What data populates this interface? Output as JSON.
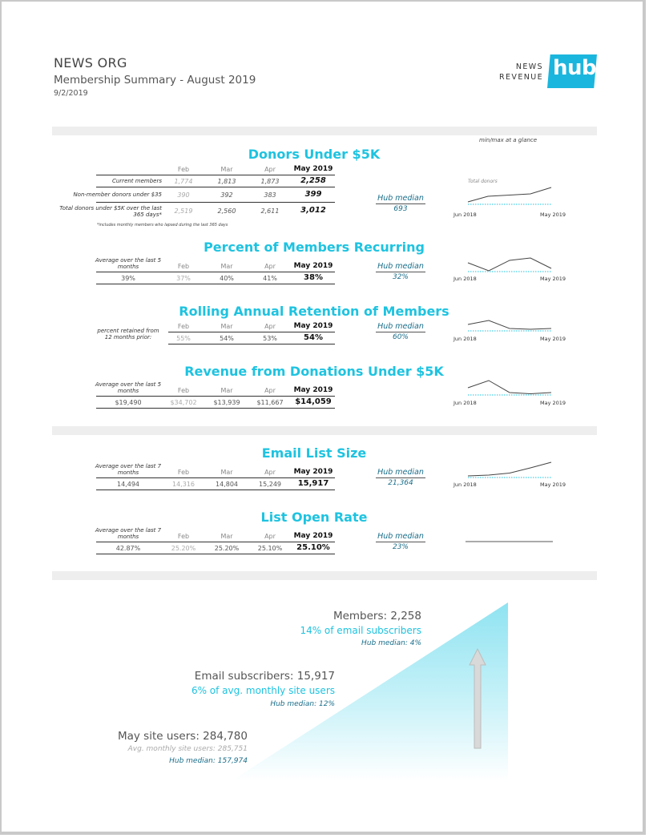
{
  "header": {
    "org_name": "NEWS ORG",
    "report_title": "Membership Summary - August 2019",
    "date": "9/2/2019",
    "logo": {
      "line1": "NEWS",
      "line2": "REVENUE",
      "hub": "hub",
      "color": "#1bb6dd"
    }
  },
  "glance_label": "min/max at a glance",
  "accent_color": "#1ec3e0",
  "months": [
    "Feb",
    "Mar",
    "Apr",
    "May 2019"
  ],
  "donors": {
    "title": "Donors Under $5K",
    "rows": [
      {
        "label": "Current members",
        "values": [
          "1,774",
          "1,813",
          "1,873"
        ],
        "current": "2,258"
      },
      {
        "label": "Non-member donors under $35",
        "values": [
          "390",
          "392",
          "383"
        ],
        "current": "399"
      },
      {
        "label": "Total donors under $5K over the last 365 days*",
        "values": [
          "2,519",
          "2,560",
          "2,611"
        ],
        "current": "3,012"
      }
    ],
    "footnote": "*includes monthly members who lapsed during the last 365 days",
    "hub_label": "Hub median",
    "hub_value": "693",
    "spark_caption": "Total donors",
    "spark_start": "Jun 2018",
    "spark_end": "May 2019"
  },
  "recurring": {
    "title": "Percent of Members Recurring",
    "avg_label": "Average over the last 5 months",
    "avg_value": "39%",
    "values": [
      "37%",
      "40%",
      "41%"
    ],
    "current": "38%",
    "hub_label": "Hub median",
    "hub_value": "32%",
    "spark_start": "Jun 2018",
    "spark_end": "May 2019"
  },
  "retention": {
    "title": "Rolling Annual Retention of Members",
    "avg_label": "percent retained from 12 months prior:",
    "values": [
      "55%",
      "54%",
      "53%"
    ],
    "current": "54%",
    "hub_label": "Hub median",
    "hub_value": "60%",
    "spark_start": "Jun 2018",
    "spark_end": "May 2019"
  },
  "revenue": {
    "title": "Revenue from Donations Under $5K",
    "avg_label": "Average over the last 5 months",
    "avg_value": "$19,490",
    "values": [
      "$34,702",
      "$13,939",
      "$11,667"
    ],
    "current": "$14,059",
    "spark_start": "Jun 2018",
    "spark_end": "May 2019"
  },
  "email": {
    "title": "Email List Size",
    "avg_label": "Average over the last 7 months",
    "avg_value": "14,494",
    "values": [
      "14,316",
      "14,804",
      "15,249"
    ],
    "current": "15,917",
    "hub_label": "Hub median",
    "hub_value": "21,364",
    "spark_start": "Jun 2018",
    "spark_end": "May 2019"
  },
  "open_rate": {
    "title": "List Open Rate",
    "avg_label": "Average over the last 7 months",
    "avg_value": "42.87%",
    "values": [
      "25.20%",
      "25.20%",
      "25.10%"
    ],
    "current": "25.10%",
    "hub_label": "Hub median",
    "hub_value": "23%"
  },
  "funnel": {
    "members": {
      "main": "Members: 2,258",
      "pct": "14% of email subscribers",
      "hub": "Hub median: 4%"
    },
    "email": {
      "main": "Email subscribers: 15,917",
      "pct": "6% of avg. monthly site users",
      "hub": "Hub median: 12%"
    },
    "site": {
      "main": "May site users: 284,780",
      "avg": "Avg. monthly site users: 285,751",
      "hub": "Hub median: 157,974"
    }
  }
}
